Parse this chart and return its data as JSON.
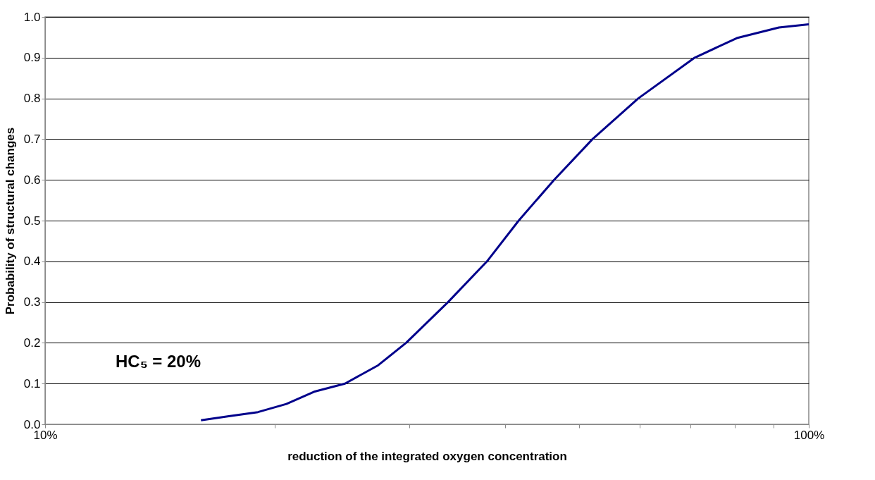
{
  "chart_data": {
    "type": "line",
    "xlabel": "reduction of the integrated oxygen concentration",
    "ylabel": "Probability of structural changes",
    "annotations": [
      "HC₅ = 20%"
    ],
    "series": [
      {
        "color": "#00008b",
        "x": [
          16.0,
          17.4,
          19.0,
          20.7,
          22.5,
          24.7,
          27.3,
          29.7,
          33.7,
          37.9,
          41.7,
          46.4,
          52.1,
          59.8,
          70.9,
          80.5,
          91.4,
          100
        ],
        "values": [
          0.01,
          0.02,
          0.03,
          0.05,
          0.08,
          0.1,
          0.145,
          0.2,
          0.3,
          0.4,
          0.5,
          0.6,
          0.7,
          0.8,
          0.9,
          0.948,
          0.974,
          0.982
        ]
      }
    ],
    "log": "x",
    "xlim": [
      10,
      100
    ],
    "xticks": [
      {
        "value": 10,
        "label": "10%"
      },
      {
        "value": 20,
        "label": null
      },
      {
        "value": 30,
        "label": null
      },
      {
        "value": 40,
        "label": null
      },
      {
        "value": 50,
        "label": null
      },
      {
        "value": 60,
        "label": null
      },
      {
        "value": 70,
        "label": null
      },
      {
        "value": 80,
        "label": null
      },
      {
        "value": 90,
        "label": null
      },
      {
        "value": 100,
        "label": "100%"
      }
    ],
    "ylim": [
      0,
      1
    ],
    "yticks": [
      {
        "value": 0,
        "label": "0.0"
      },
      0.1,
      0.2,
      0.3,
      0.4,
      0.5,
      0.6,
      0.7,
      0.8,
      0.9,
      {
        "value": 1,
        "label": "1.0"
      }
    ],
    "grid": "y",
    "marker": "none",
    "line_style": "solid"
  }
}
